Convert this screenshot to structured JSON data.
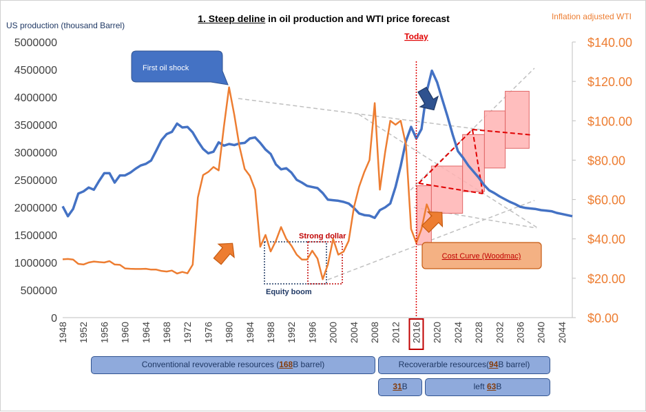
{
  "chart_data": {
    "type": "line",
    "title_parts": [
      "1. ",
      "Steep deline",
      " in oil production and WTI price forecast"
    ],
    "ylabel_left": "US production (thousand Barrel)",
    "ylabel_right": "Inflation adjusted WTI",
    "y_left_ticks": [
      "5000000",
      "4500000",
      "4000000",
      "3500000",
      "3000000",
      "2500000",
      "2000000",
      "1500000",
      "1000000",
      "500000",
      "0"
    ],
    "y_left_lim": [
      0,
      5000000
    ],
    "y_right_ticks": [
      "$140.00",
      "$120.00",
      "$100.00",
      "$80.00",
      "$60.00",
      "$40.00",
      "$20.00",
      "$0.00"
    ],
    "y_right_lim": [
      0,
      140
    ],
    "x_ticks": [
      "1948",
      "1952",
      "1956",
      "1960",
      "1964",
      "1968",
      "1972",
      "1976",
      "1980",
      "1984",
      "1988",
      "1992",
      "1996",
      "2000",
      "2004",
      "2008",
      "2012",
      "2016",
      "2020",
      "2024",
      "2028",
      "2032",
      "2036",
      "2040",
      "2044"
    ],
    "x_lim": [
      1948,
      2046
    ],
    "series": [
      {
        "name": "US production",
        "axis": "left",
        "color": "#4472c4",
        "x": [
          1948,
          1949,
          1950,
          1951,
          1952,
          1953,
          1954,
          1955,
          1956,
          1957,
          1958,
          1959,
          1960,
          1961,
          1962,
          1963,
          1964,
          1965,
          1966,
          1967,
          1968,
          1969,
          1970,
          1971,
          1972,
          1973,
          1974,
          1975,
          1976,
          1977,
          1978,
          1979,
          1980,
          1981,
          1982,
          1983,
          1984,
          1985,
          1986,
          1987,
          1988,
          1989,
          1990,
          1991,
          1992,
          1993,
          1994,
          1995,
          1996,
          1997,
          1998,
          1999,
          2000,
          2001,
          2002,
          2003,
          2004,
          2005,
          2006,
          2007,
          2008,
          2009,
          2010,
          2011,
          2012,
          2013,
          2014,
          2015,
          2016,
          2017,
          2018,
          2019,
          2020,
          2021,
          2022,
          2023,
          2024,
          2025,
          2026,
          2027,
          2028,
          2029,
          2030,
          2031,
          2032,
          2033,
          2034,
          2035,
          2036,
          2037,
          2038,
          2039,
          2040,
          2041,
          2042,
          2043,
          2044,
          2045,
          2046
        ],
        "values": [
          2020000,
          1840000,
          1970000,
          2250000,
          2290000,
          2360000,
          2320000,
          2480000,
          2620000,
          2620000,
          2450000,
          2580000,
          2580000,
          2630000,
          2700000,
          2760000,
          2790000,
          2850000,
          3030000,
          3220000,
          3330000,
          3370000,
          3520000,
          3450000,
          3460000,
          3360000,
          3200000,
          3060000,
          2980000,
          3010000,
          3180000,
          3120000,
          3150000,
          3130000,
          3160000,
          3170000,
          3250000,
          3270000,
          3170000,
          3050000,
          2970000,
          2780000,
          2690000,
          2710000,
          2630000,
          2500000,
          2450000,
          2390000,
          2370000,
          2350000,
          2260000,
          2140000,
          2130000,
          2120000,
          2100000,
          2070000,
          1990000,
          1890000,
          1860000,
          1850000,
          1810000,
          1950000,
          2000000,
          2070000,
          2370000,
          2750000,
          3200000,
          3460000,
          3250000,
          3420000,
          4100000,
          4480000,
          4270000,
          3960000,
          3650000,
          3320000,
          3020000,
          2900000,
          2760000,
          2650000,
          2540000,
          2410000,
          2310000,
          2260000,
          2200000,
          2150000,
          2100000,
          2060000,
          2010000,
          1990000,
          1980000,
          1970000,
          1950000,
          1940000,
          1930000,
          1900000,
          1880000,
          1860000,
          1840000
        ]
      },
      {
        "name": "Inflation adjusted WTI",
        "axis": "right",
        "color": "#ed7d31",
        "x": [
          1948,
          1949,
          1950,
          1951,
          1952,
          1953,
          1954,
          1955,
          1956,
          1957,
          1958,
          1959,
          1960,
          1961,
          1962,
          1963,
          1964,
          1965,
          1966,
          1967,
          1968,
          1969,
          1970,
          1971,
          1972,
          1973,
          1974,
          1975,
          1976,
          1977,
          1978,
          1979,
          1980,
          1981,
          1982,
          1983,
          1984,
          1985,
          1986,
          1987,
          1988,
          1989,
          1990,
          1991,
          1992,
          1993,
          1994,
          1995,
          1996,
          1997,
          1998,
          1999,
          2000,
          2001,
          2002,
          2003,
          2004,
          2005,
          2006,
          2007,
          2008,
          2009,
          2010,
          2011,
          2012,
          2013,
          2014,
          2015,
          2016,
          2017,
          2018,
          2019
        ],
        "values": [
          29.6,
          29.8,
          29.5,
          27.3,
          27.0,
          28.0,
          28.5,
          28.2,
          28.0,
          28.7,
          27.0,
          26.8,
          25.0,
          24.8,
          24.7,
          24.7,
          24.8,
          24.4,
          24.4,
          23.7,
          23.4,
          23.9,
          22.4,
          23.2,
          22.5,
          26.9,
          61.0,
          72.4,
          74.0,
          76.5,
          74.8,
          97.0,
          117.0,
          103.0,
          87.0,
          75.5,
          72.0,
          65.0,
          36.0,
          42.0,
          33.6,
          39.0,
          46.0,
          40.0,
          36.5,
          32.0,
          29.5,
          29.5,
          34.0,
          30.0,
          19.5,
          27.0,
          40.0,
          32.0,
          33.5,
          39.0,
          56.0,
          66.5,
          74.0,
          80.0,
          109.0,
          65.0,
          84.0,
          100.0,
          98.0,
          100.0,
          88.0,
          45.0,
          38.0,
          45.0,
          57.5,
          51.0
        ]
      }
    ],
    "cost_curve_boxes": [
      {
        "x0": 2016.1,
        "x1": 2018.9,
        "y_low": 37,
        "y_high": 67
      },
      {
        "x0": 2018.9,
        "x1": 2024.9,
        "y_low": 53,
        "y_high": 77
      },
      {
        "x0": 2024.9,
        "x1": 2029.1,
        "y_low": 64,
        "y_high": 93
      },
      {
        "x0": 2029.1,
        "x1": 2033.1,
        "y_low": 76,
        "y_high": 105
      },
      {
        "x0": 2033.1,
        "x1": 2037.7,
        "y_low": 86,
        "y_high": 115
      }
    ],
    "today_year": 2016,
    "annotations": {
      "today_label": "Today",
      "first_oil_shock": "First oil shock",
      "strong_dollar": "Strong dollar",
      "equity_boom": "Equity boom",
      "cost_curve": "Cost Curve (Woodmac)"
    },
    "resource_boxes": {
      "conventional_pre": "Conventional revoverable resources (",
      "conventional_value": "168",
      "conventional_post": "B barrel)",
      "recoverable_pre": "Recoverarble resources(",
      "recoverable_value": "94",
      "recoverable_post": "B barrel)",
      "used_value": "31",
      "used_post": "B",
      "left_pre": "left ",
      "left_value": "63",
      "left_post": "B"
    }
  }
}
